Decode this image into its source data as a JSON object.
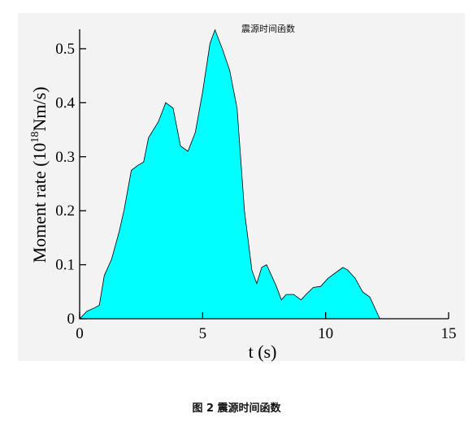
{
  "chart_data": {
    "type": "area",
    "title": "震源时间函数",
    "xlabel": "t (s)",
    "ylabel": {
      "main": "Moment rate (10",
      "sup": "18",
      "unit": "Nm/s)"
    },
    "xlim": [
      0,
      15
    ],
    "ylim": [
      0,
      0.53
    ],
    "x_ticks": [
      "0",
      "5",
      "10",
      "15"
    ],
    "y_ticks": [
      "0",
      "0.1",
      "0.2",
      "0.3",
      "0.4",
      "0.5"
    ],
    "fill_color": "#00ffff",
    "grid": false,
    "x": [
      0,
      0.3,
      0.6,
      0.8,
      1.0,
      1.3,
      1.6,
      1.8,
      2.1,
      2.4,
      2.6,
      2.8,
      3.2,
      3.5,
      3.8,
      4.1,
      4.4,
      4.7,
      5.0,
      5.3,
      5.5,
      5.8,
      6.1,
      6.4,
      6.7,
      7.0,
      7.2,
      7.4,
      7.6,
      7.8,
      8.0,
      8.2,
      8.4,
      8.7,
      9.0,
      9.2,
      9.5,
      9.8,
      10.1,
      10.4,
      10.7,
      10.9,
      11.2,
      11.5,
      11.8,
      12.0,
      12.2
    ],
    "y": [
      0,
      0.014,
      0.02,
      0.025,
      0.08,
      0.11,
      0.16,
      0.2,
      0.275,
      0.285,
      0.29,
      0.335,
      0.365,
      0.4,
      0.39,
      0.32,
      0.31,
      0.345,
      0.42,
      0.51,
      0.535,
      0.5,
      0.46,
      0.39,
      0.2,
      0.09,
      0.065,
      0.095,
      0.1,
      0.08,
      0.06,
      0.035,
      0.045,
      0.045,
      0.035,
      0.045,
      0.058,
      0.06,
      0.075,
      0.085,
      0.095,
      0.09,
      0.075,
      0.05,
      0.04,
      0.02,
      0
    ]
  },
  "caption": "图 2  震源时间函数"
}
